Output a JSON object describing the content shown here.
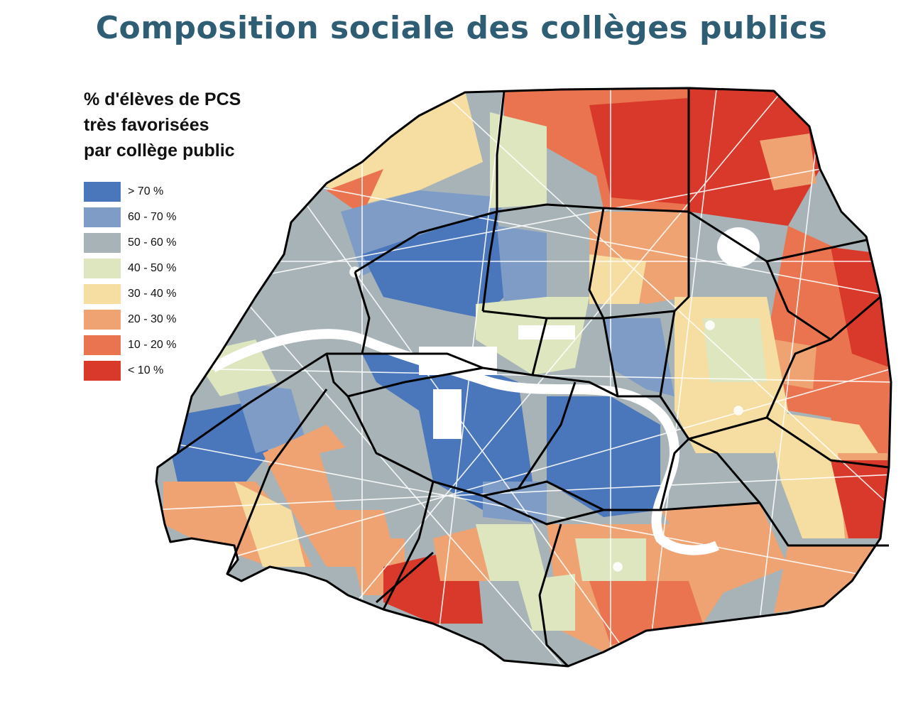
{
  "title": "Composition sociale des collèges publics",
  "legend": {
    "title_lines": [
      "% d'élèves de PCS",
      "très favorisées",
      "par collège public"
    ],
    "items": [
      {
        "label": "> 70 %",
        "color": "#4a76bb"
      },
      {
        "label": "60 - 70 %",
        "color": "#7f9cc7"
      },
      {
        "label": "50 - 60 %",
        "color": "#a8b3b7"
      },
      {
        "label": "40 - 50 %",
        "color": "#dde6bf"
      },
      {
        "label": "30 - 40 %",
        "color": "#f6dea2"
      },
      {
        "label": "20 - 30 %",
        "color": "#efa373"
      },
      {
        "label": "10 - 20 %",
        "color": "#e9744f"
      },
      {
        "label": "< 10 %",
        "color": "#d9392a"
      }
    ]
  }
}
